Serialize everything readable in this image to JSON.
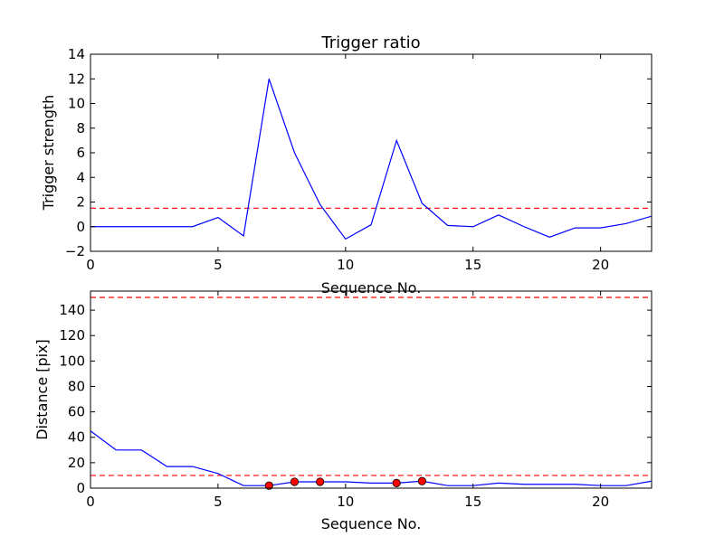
{
  "chart_data": [
    {
      "type": "line",
      "title": "Trigger ratio",
      "xlabel": "Sequence No.",
      "ylabel": "Trigger strength",
      "xlim": [
        0,
        22
      ],
      "ylim": [
        -2,
        14
      ],
      "xticks": [
        0,
        5,
        10,
        15,
        20
      ],
      "yticks": [
        -2,
        0,
        2,
        4,
        6,
        8,
        10,
        12,
        14
      ],
      "x": [
        0,
        1,
        2,
        3,
        4,
        5,
        6,
        7,
        8,
        9,
        10,
        11,
        12,
        13,
        14,
        15,
        16,
        17,
        18,
        19,
        20,
        21,
        22
      ],
      "series": [
        {
          "values": [
            0,
            0,
            0,
            0,
            0,
            0.75,
            -0.75,
            12,
            6,
            1.8,
            -1,
            0.15,
            7,
            1.9,
            0.1,
            0,
            0.95,
            0,
            -0.85,
            -0.1,
            -0.1,
            0.25,
            0.85
          ],
          "color": "#0000ff",
          "style": "solid"
        }
      ],
      "hlines": [
        {
          "y": 1.5,
          "color": "#ff0000",
          "style": "dashed"
        }
      ],
      "grid": false
    },
    {
      "type": "line",
      "title": "",
      "xlabel": "Sequence No.",
      "ylabel": "Distance [pix]",
      "xlim": [
        0,
        22
      ],
      "ylim": [
        0,
        155
      ],
      "xticks": [
        0,
        5,
        10,
        15,
        20
      ],
      "yticks": [
        0,
        20,
        40,
        60,
        80,
        100,
        120,
        140
      ],
      "x": [
        0,
        1,
        2,
        3,
        4,
        5,
        6,
        7,
        8,
        9,
        10,
        11,
        12,
        13,
        14,
        15,
        16,
        17,
        18,
        19,
        20,
        21,
        22
      ],
      "series": [
        {
          "values": [
            45,
            30,
            30,
            17,
            17,
            11.5,
            2,
            2,
            5,
            5,
            5,
            4,
            4,
            5.5,
            2,
            2,
            4,
            3,
            3,
            3,
            2,
            2,
            5.5
          ],
          "color": "#0000ff",
          "style": "solid"
        }
      ],
      "markers": {
        "x": [
          7,
          8,
          9,
          12,
          13
        ],
        "y": [
          2,
          5,
          5,
          4,
          5.5
        ],
        "color": "#ff0000"
      },
      "hlines": [
        {
          "y": 10,
          "color": "#ff0000",
          "style": "dashed"
        },
        {
          "y": 150,
          "color": "#ff0000",
          "style": "dashed"
        }
      ],
      "grid": false
    }
  ]
}
